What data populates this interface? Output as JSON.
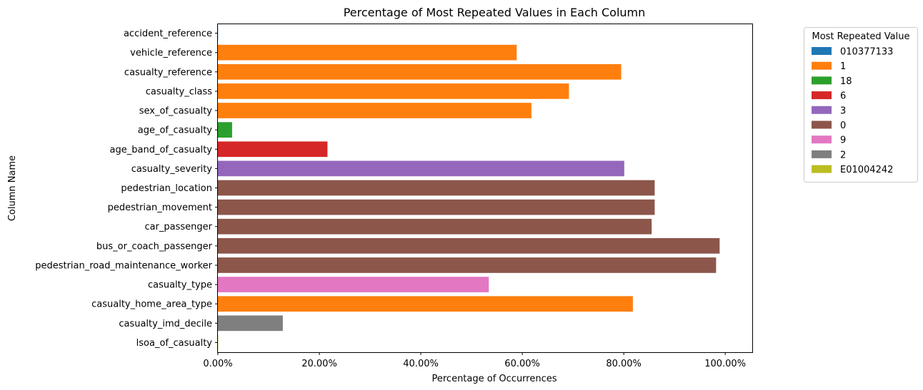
{
  "chart_data": {
    "type": "bar",
    "orientation": "horizontal",
    "title": "Percentage of Most Repeated Values in Each Column",
    "xlabel": "Percentage of Occurrences",
    "ylabel": "Column Name",
    "xlim": [
      0,
      1.0533
    ],
    "x_ticks": [
      0,
      0.2,
      0.4,
      0.6,
      0.8,
      1.0
    ],
    "x_tick_labels": [
      "0.00%",
      "20.00%",
      "40.00%",
      "60.00%",
      "80.00%",
      "100.00%"
    ],
    "grid": false,
    "legend": {
      "title": "Most Repeated Value",
      "placement": "outside-right-top",
      "entries": [
        {
          "label": "010377133",
          "color": "#1f77b4"
        },
        {
          "label": "1",
          "color": "#ff7f0e"
        },
        {
          "label": "18",
          "color": "#2ca02c"
        },
        {
          "label": "6",
          "color": "#d62728"
        },
        {
          "label": "3",
          "color": "#9467bd"
        },
        {
          "label": "0",
          "color": "#8c564b"
        },
        {
          "label": "9",
          "color": "#e377c2"
        },
        {
          "label": "2",
          "color": "#7f7f7f"
        },
        {
          "label": "E01004242",
          "color": "#bcbd22"
        }
      ]
    },
    "categories": [
      "accident_reference",
      "vehicle_reference",
      "casualty_reference",
      "casualty_class",
      "sex_of_casualty",
      "age_of_casualty",
      "age_band_of_casualty",
      "casualty_severity",
      "pedestrian_location",
      "pedestrian_movement",
      "car_passenger",
      "bus_or_coach_passenger",
      "pedestrian_road_maintenance_worker",
      "casualty_type",
      "casualty_home_area_type",
      "casualty_imd_decile",
      "lsoa_of_casualty"
    ],
    "values": [
      0.0003,
      0.589,
      0.795,
      0.692,
      0.618,
      0.028,
      0.216,
      0.801,
      0.861,
      0.861,
      0.855,
      0.989,
      0.982,
      0.534,
      0.818,
      0.128,
      0.0005
    ],
    "bar_values": [
      "010377133",
      "1",
      "1",
      "1",
      "1",
      "18",
      "6",
      "3",
      "0",
      "0",
      "0",
      "0",
      "0",
      "9",
      "1",
      "2",
      "E01004242"
    ],
    "bar_colors": [
      "#1f77b4",
      "#ff7f0e",
      "#ff7f0e",
      "#ff7f0e",
      "#ff7f0e",
      "#2ca02c",
      "#d62728",
      "#9467bd",
      "#8c564b",
      "#8c564b",
      "#8c564b",
      "#8c564b",
      "#8c564b",
      "#e377c2",
      "#ff7f0e",
      "#7f7f7f",
      "#bcbd22"
    ]
  }
}
